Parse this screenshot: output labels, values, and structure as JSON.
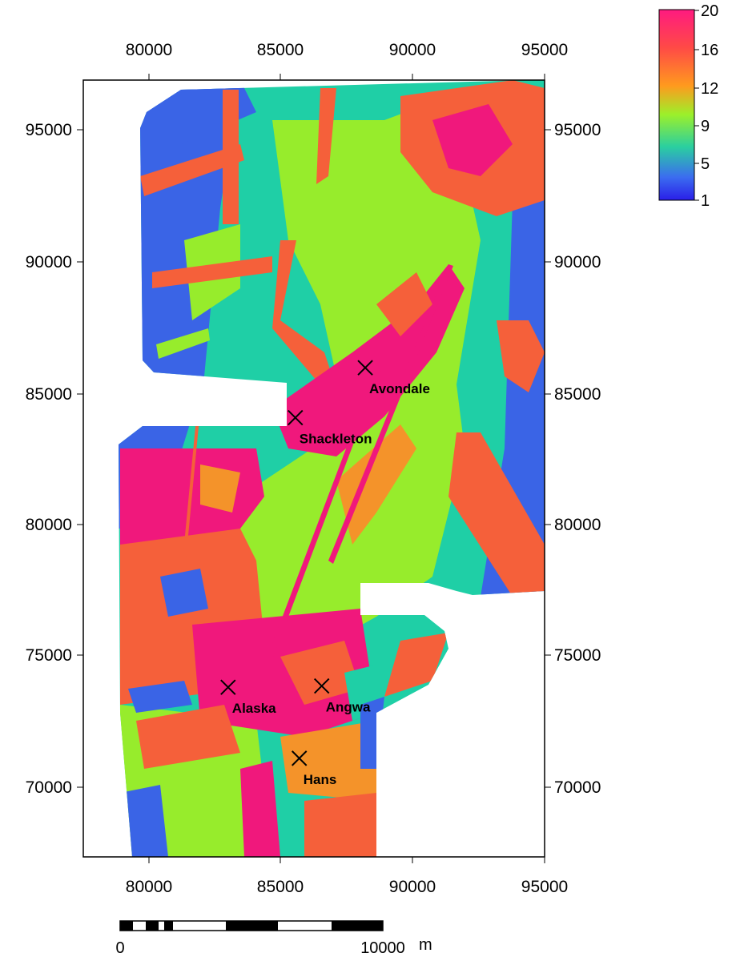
{
  "map": {
    "x_ticks": [
      "80000",
      "85000",
      "90000",
      "95000"
    ],
    "y_ticks": [
      "95000",
      "90000",
      "85000",
      "80000",
      "75000",
      "70000"
    ],
    "sites": [
      {
        "name": "Avondale",
        "easting": 88200,
        "northing": 85950
      },
      {
        "name": "Shackleton",
        "easting": 85550,
        "northing": 84050
      },
      {
        "name": "Alaska",
        "easting": 83000,
        "northing": 73800
      },
      {
        "name": "Angwa",
        "easting": 86550,
        "northing": 73850
      },
      {
        "name": "Hans",
        "easting": 85700,
        "northing": 71100
      }
    ]
  },
  "colorbar": {
    "labels": [
      "20",
      "16",
      "12",
      "9",
      "5",
      "1"
    ],
    "colors": [
      "#ff1a80",
      "#ff5a3c",
      "#ff9a1e",
      "#9cf02a",
      "#2acfa0",
      "#3b6cf0",
      "#2a1ee8"
    ]
  },
  "scale_bar": {
    "start_label": "0",
    "end_label": "10000",
    "unit_label": "m"
  },
  "palette": {
    "blue": "#3a64e6",
    "teal": "#1fcfa6",
    "green": "#97ec2c",
    "orange": "#f4932a",
    "redorange": "#f5603a",
    "pink": "#f0187c"
  }
}
